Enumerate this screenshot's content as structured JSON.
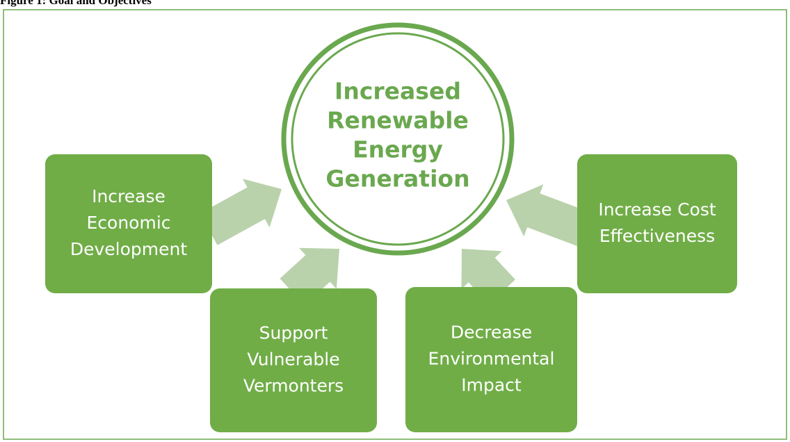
{
  "caption": "Figure 1: Goal and Objectives",
  "goal": {
    "lines": [
      "Increased",
      "Renewable",
      "Energy",
      "Generation"
    ]
  },
  "objectives": [
    {
      "lines": [
        "Increase",
        "Economic",
        "Development"
      ]
    },
    {
      "lines": [
        "Support",
        "Vulnerable",
        "Vermonters"
      ]
    },
    {
      "lines": [
        "Decrease",
        "Environmental",
        "Impact"
      ]
    },
    {
      "lines": [
        "Increase Cost",
        "Effectiveness"
      ]
    }
  ]
}
